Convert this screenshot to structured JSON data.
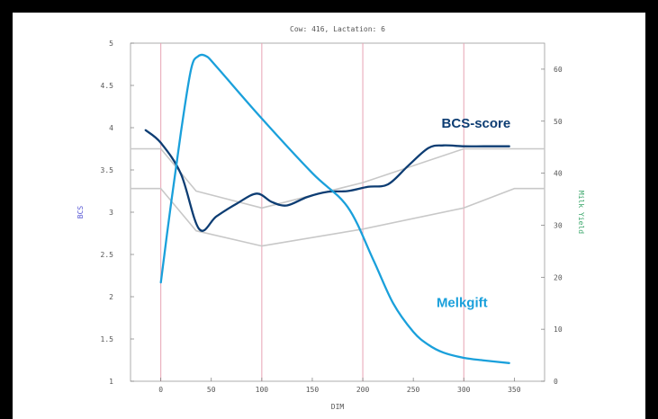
{
  "chart_data": {
    "type": "line",
    "title": "Cow: 416, Lactation: 6",
    "xlabel": "DIM",
    "ylabel": "BCS",
    "y2label": "Milk Yield",
    "xlim": [
      -30,
      380
    ],
    "ylim": [
      1,
      5
    ],
    "y2lim": [
      0,
      65
    ],
    "xticks": [
      0,
      50,
      100,
      150,
      200,
      250,
      300,
      350
    ],
    "yticks": [
      1,
      1.5,
      2,
      2.5,
      3,
      3.5,
      4,
      4.5,
      5
    ],
    "y2ticks": [
      0,
      10,
      20,
      30,
      40,
      50,
      60
    ],
    "vlines": [
      0,
      100,
      200,
      300
    ],
    "grid": false,
    "series": [
      {
        "name": "BCS-score",
        "axis": "left",
        "color": "#0d3d73",
        "x": [
          -15,
          0,
          20,
          38,
          55,
          75,
          95,
          110,
          125,
          145,
          165,
          185,
          205,
          225,
          245,
          265,
          280,
          300,
          320,
          345
        ],
        "y": [
          3.97,
          3.82,
          3.45,
          2.8,
          2.95,
          3.1,
          3.22,
          3.12,
          3.08,
          3.18,
          3.24,
          3.25,
          3.3,
          3.33,
          3.55,
          3.76,
          3.79,
          3.78,
          3.78,
          3.78
        ]
      },
      {
        "name": "Melkgift",
        "axis": "right",
        "color": "#1aa0db",
        "x": [
          0,
          10,
          20,
          30,
          37,
          45,
          55,
          100,
          150,
          185,
          210,
          230,
          250,
          265,
          280,
          300,
          320,
          345
        ],
        "y": [
          19,
          34,
          48,
          60,
          62.5,
          62.5,
          60.5,
          50.5,
          40,
          33.5,
          23.5,
          15,
          9.5,
          7,
          5.5,
          4.5,
          4,
          3.5
        ]
      },
      {
        "name": "",
        "axis": "left",
        "color": "#c8c8c8",
        "x": [
          -30,
          0,
          35,
          100,
          200,
          300,
          350,
          380
        ],
        "y": [
          3.75,
          3.75,
          3.25,
          3.05,
          3.35,
          3.75,
          3.75,
          3.75
        ]
      },
      {
        "name": "",
        "axis": "left",
        "color": "#c8c8c8",
        "x": [
          -30,
          0,
          35,
          100,
          200,
          300,
          350,
          380
        ],
        "y": [
          3.28,
          3.28,
          2.78,
          2.6,
          2.8,
          3.05,
          3.28,
          3.28
        ]
      }
    ],
    "annotations": [
      {
        "text": "BCS-score",
        "x": 278,
        "y": 4.0,
        "axis": "left",
        "color": "#0d3d73"
      },
      {
        "text": "Melkgift",
        "x": 273,
        "y": 1.88,
        "axis": "left",
        "color": "#1aa0db"
      }
    ]
  }
}
